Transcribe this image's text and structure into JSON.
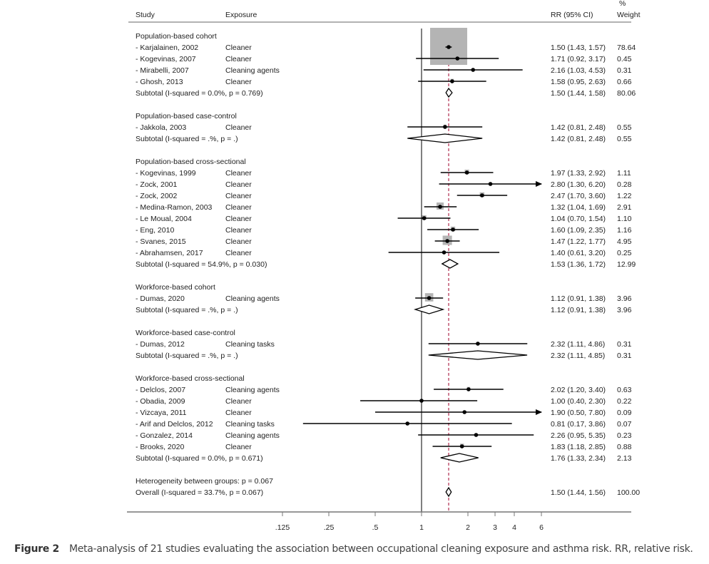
{
  "chart_data": {
    "type": "forest",
    "x_scale": "log",
    "xlim": [
      0.0122,
      23
    ],
    "clip_max": 6,
    "reference_line": 1,
    "overall_line": 1.5,
    "x_ticks": [
      ".125",
      ".25",
      ".5",
      "1",
      "2",
      "3",
      "4",
      "6"
    ],
    "x_tick_values": [
      0.125,
      0.25,
      0.5,
      1,
      2,
      3,
      4,
      6
    ],
    "headers": {
      "study": "Study",
      "exposure": "Exposure",
      "rr": "RR (95% CI)",
      "weight_top": "%",
      "weight": "Weight"
    },
    "rows": [
      {
        "type": "group",
        "label": "Population-based cohort"
      },
      {
        "type": "study",
        "study": "- Karjalainen, 2002",
        "exposure": "Cleaner",
        "rr": 1.5,
        "lo": 1.43,
        "hi": 1.57,
        "text": "1.50 (1.43, 1.57)",
        "weight": "78.64",
        "w": 78.64
      },
      {
        "type": "study",
        "study": "- Kogevinas, 2007",
        "exposure": "Cleaner",
        "rr": 1.71,
        "lo": 0.92,
        "hi": 3.17,
        "text": "1.71 (0.92, 3.17)",
        "weight": "0.45",
        "w": 0.45
      },
      {
        "type": "study",
        "study": "- Mirabelli, 2007",
        "exposure": "Cleaning agents",
        "rr": 2.16,
        "lo": 1.03,
        "hi": 4.53,
        "text": "2.16 (1.03, 4.53)",
        "weight": "0.31",
        "w": 0.31
      },
      {
        "type": "study",
        "study": "- Ghosh, 2013",
        "exposure": "Cleaner",
        "rr": 1.58,
        "lo": 0.95,
        "hi": 2.63,
        "text": "1.58 (0.95, 2.63)",
        "weight": "0.66",
        "w": 0.66
      },
      {
        "type": "subtotal",
        "study": "Subtotal  (I-squared = 0.0%, p = 0.769)",
        "rr": 1.5,
        "lo": 1.44,
        "hi": 1.58,
        "text": "1.50 (1.44, 1.58)",
        "weight": "80.06"
      },
      {
        "type": "blank"
      },
      {
        "type": "group",
        "label": "Population-based case-control"
      },
      {
        "type": "study",
        "study": "- Jakkola, 2003",
        "exposure": "Cleaner",
        "rr": 1.42,
        "lo": 0.81,
        "hi": 2.48,
        "text": "1.42 (0.81, 2.48)",
        "weight": "0.55",
        "w": 0.55
      },
      {
        "type": "subtotal",
        "study": "Subtotal  (I-squared = .%, p = .)",
        "rr": 1.42,
        "lo": 0.81,
        "hi": 2.48,
        "text": "1.42 (0.81, 2.48)",
        "weight": "0.55"
      },
      {
        "type": "blank"
      },
      {
        "type": "group",
        "label": "Population-based cross-sectional"
      },
      {
        "type": "study",
        "study": "- Kogevinas, 1999",
        "exposure": "Cleaner",
        "rr": 1.97,
        "lo": 1.33,
        "hi": 2.92,
        "text": "1.97 (1.33, 2.92)",
        "weight": "1.11",
        "w": 1.11
      },
      {
        "type": "study",
        "study": "- Zock, 2001",
        "exposure": "Cleaner",
        "rr": 2.8,
        "lo": 1.3,
        "hi": 6.2,
        "text": "2.80 (1.30, 6.20)",
        "weight": "0.28",
        "w": 0.28
      },
      {
        "type": "study",
        "study": "- Zock, 2002",
        "exposure": "Cleaner",
        "rr": 2.47,
        "lo": 1.7,
        "hi": 3.6,
        "text": "2.47 (1.70, 3.60)",
        "weight": "1.22",
        "w": 1.22
      },
      {
        "type": "study",
        "study": "- Medina-Ramon, 2003",
        "exposure": "Cleaner",
        "rr": 1.32,
        "lo": 1.04,
        "hi": 1.69,
        "text": "1.32 (1.04, 1.69)",
        "weight": "2.91",
        "w": 2.91
      },
      {
        "type": "study",
        "study": "- Le Moual, 2004",
        "exposure": "Cleaner",
        "rr": 1.04,
        "lo": 0.7,
        "hi": 1.54,
        "text": "1.04 (0.70, 1.54)",
        "weight": "1.10",
        "w": 1.1
      },
      {
        "type": "study",
        "study": "- Eng, 2010",
        "exposure": "Cleaner",
        "rr": 1.6,
        "lo": 1.09,
        "hi": 2.35,
        "text": "1.60 (1.09, 2.35)",
        "weight": "1.16",
        "w": 1.16
      },
      {
        "type": "study",
        "study": "- Svanes, 2015",
        "exposure": "Cleaner",
        "rr": 1.47,
        "lo": 1.22,
        "hi": 1.77,
        "text": "1.47 (1.22, 1.77)",
        "weight": "4.95",
        "w": 4.95
      },
      {
        "type": "study",
        "study": "- Abrahamsen, 2017",
        "exposure": "Cleaner",
        "rr": 1.4,
        "lo": 0.61,
        "hi": 3.2,
        "text": "1.40 (0.61, 3.20)",
        "weight": "0.25",
        "w": 0.25
      },
      {
        "type": "subtotal",
        "study": "Subtotal  (I-squared = 54.9%, p = 0.030)",
        "rr": 1.53,
        "lo": 1.36,
        "hi": 1.72,
        "text": "1.53 (1.36, 1.72)",
        "weight": "12.99"
      },
      {
        "type": "blank"
      },
      {
        "type": "group",
        "label": "Workforce-based cohort"
      },
      {
        "type": "study",
        "study": "- Dumas, 2020",
        "exposure": "Cleaning agents",
        "rr": 1.12,
        "lo": 0.91,
        "hi": 1.38,
        "text": "1.12 (0.91, 1.38)",
        "weight": "3.96",
        "w": 3.96
      },
      {
        "type": "subtotal",
        "study": "Subtotal  (I-squared = .%, p = .)",
        "rr": 1.12,
        "lo": 0.91,
        "hi": 1.38,
        "text": "1.12 (0.91, 1.38)",
        "weight": "3.96"
      },
      {
        "type": "blank"
      },
      {
        "type": "group",
        "label": "Workforce-based case-control"
      },
      {
        "type": "study",
        "study": "- Dumas, 2012",
        "exposure": "Cleaning tasks",
        "rr": 2.32,
        "lo": 1.11,
        "hi": 4.86,
        "text": "2.32 (1.11, 4.86)",
        "weight": "0.31",
        "w": 0.31
      },
      {
        "type": "subtotal",
        "study": "Subtotal  (I-squared = .%, p = .)",
        "rr": 2.32,
        "lo": 1.11,
        "hi": 4.85,
        "text": "2.32 (1.11, 4.85)",
        "weight": "0.31"
      },
      {
        "type": "blank"
      },
      {
        "type": "group",
        "label": "Workforce-based cross-sectional"
      },
      {
        "type": "study",
        "study": "- Delclos, 2007",
        "exposure": "Cleaning agents",
        "rr": 2.02,
        "lo": 1.2,
        "hi": 3.4,
        "text": "2.02 (1.20, 3.40)",
        "weight": "0.63",
        "w": 0.63
      },
      {
        "type": "study",
        "study": "- Obadia, 2009",
        "exposure": "Cleaner",
        "rr": 1.0,
        "lo": 0.4,
        "hi": 2.3,
        "text": "1.00 (0.40, 2.30)",
        "weight": "0.22",
        "w": 0.22
      },
      {
        "type": "study",
        "study": "- Vizcaya, 2011",
        "exposure": "Cleaner",
        "rr": 1.9,
        "lo": 0.5,
        "hi": 7.8,
        "text": "1.90 (0.50, 7.80)",
        "weight": "0.09",
        "w": 0.09
      },
      {
        "type": "study",
        "study": "- Arif and Delclos, 2012",
        "exposure": "Cleaning tasks",
        "rr": 0.81,
        "lo": 0.17,
        "hi": 3.86,
        "text": "0.81 (0.17, 3.86)",
        "weight": "0.07",
        "w": 0.07
      },
      {
        "type": "study",
        "study": "- Gonzalez, 2014",
        "exposure": "Cleaning agents",
        "rr": 2.26,
        "lo": 0.95,
        "hi": 5.35,
        "text": "2.26 (0.95, 5.35)",
        "weight": "0.23",
        "w": 0.23
      },
      {
        "type": "study",
        "study": "- Brooks, 2020",
        "exposure": "Cleaner",
        "rr": 1.83,
        "lo": 1.18,
        "hi": 2.85,
        "text": "1.83 (1.18, 2.85)",
        "weight": "0.88",
        "w": 0.88
      },
      {
        "type": "subtotal",
        "study": "Subtotal  (I-squared = 0.0%, p = 0.671)",
        "rr": 1.76,
        "lo": 1.33,
        "hi": 2.34,
        "text": "1.76 (1.33, 2.34)",
        "weight": "2.13"
      },
      {
        "type": "blank"
      },
      {
        "type": "label",
        "study": "Heterogeneity between groups: p = 0.067"
      },
      {
        "type": "subtotal",
        "study": "Overall  (I-squared = 33.7%, p = 0.067)",
        "rr": 1.5,
        "lo": 1.44,
        "hi": 1.56,
        "text": "1.50 (1.44, 1.56)",
        "weight": "100.00"
      }
    ],
    "colors": {
      "text": "#222222",
      "weight_box": "#b4b4b4",
      "overall_line": "#a0002a",
      "line": "#000000"
    }
  },
  "caption": {
    "label": "Figure 2",
    "text": "Meta-analysis of 21 studies evaluating the association between occupational cleaning exposure and asthma risk. RR, relative risk."
  }
}
